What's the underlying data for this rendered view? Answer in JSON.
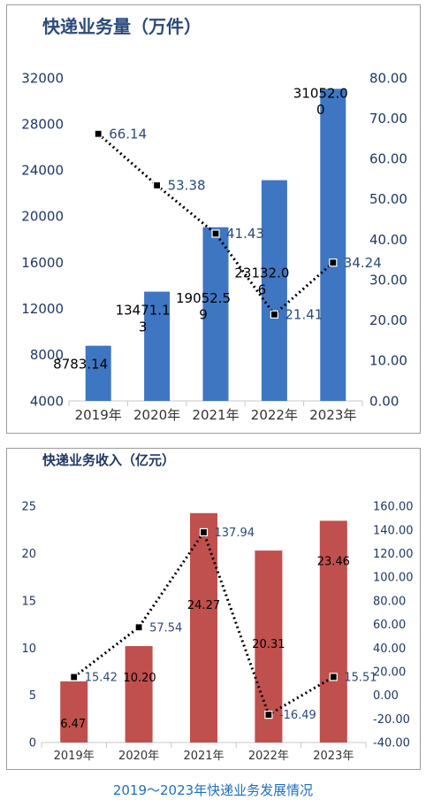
{
  "chart_data": [
    {
      "type": "bar+line",
      "title": "快递业务量（万件）",
      "categories": [
        "2019年",
        "2020年",
        "2021年",
        "2022年",
        "2023年"
      ],
      "series": [
        {
          "kind": "bar",
          "axis": "left",
          "values": [
            8783.14,
            13471.13,
            19052.59,
            23132.06,
            31052.0
          ],
          "labels": [
            "8783.14",
            "13471.1|3",
            "19052.5|9",
            "23132.0|6",
            "31052.0|0"
          ]
        },
        {
          "kind": "line",
          "axis": "right",
          "values": [
            66.14,
            53.38,
            41.43,
            21.41,
            34.24
          ],
          "labels": [
            "66.14",
            "53.38",
            "41.43",
            "21.41",
            "34.24"
          ]
        }
      ],
      "left_ticks": [
        "4000",
        "8000",
        "12000",
        "16000",
        "20000",
        "24000",
        "28000",
        "32000"
      ],
      "right_ticks": [
        "0.00",
        "10.00",
        "20.00",
        "30.00",
        "40.00",
        "50.00",
        "60.00",
        "70.00",
        "80.00"
      ],
      "ylim_left": [
        4000,
        32000
      ],
      "ylim_right": [
        0,
        80
      ],
      "bar_color": "#3f76c2",
      "grid": false
    },
    {
      "type": "bar+line",
      "title": "快递业务收入（亿元）",
      "categories": [
        "2019年",
        "2020年",
        "2021年",
        "2022年",
        "2023年"
      ],
      "series": [
        {
          "kind": "bar",
          "axis": "left",
          "values": [
            6.47,
            10.2,
            24.27,
            20.31,
            23.46
          ],
          "labels": [
            "6.47",
            "10.20",
            "24.27",
            "20.31",
            "23.46"
          ]
        },
        {
          "kind": "line",
          "axis": "right",
          "values": [
            15.42,
            57.54,
            137.94,
            -16.49,
            15.51
          ],
          "labels": [
            "15.42",
            "57.54",
            "137.94",
            "-16.49",
            "15.51"
          ]
        }
      ],
      "left_ticks": [
        "0",
        "5",
        "10",
        "15",
        "20",
        "25"
      ],
      "right_ticks": [
        "-40.00",
        "-20.00",
        "0.00",
        "20.00",
        "40.00",
        "60.00",
        "80.00",
        "100.00",
        "120.00",
        "140.00",
        "160.00"
      ],
      "ylim_left": [
        0,
        25
      ],
      "ylim_right": [
        -40,
        160
      ],
      "bar_color": "#c0504d",
      "grid": false
    }
  ],
  "caption": "2019～2023年快递业务发展情况"
}
